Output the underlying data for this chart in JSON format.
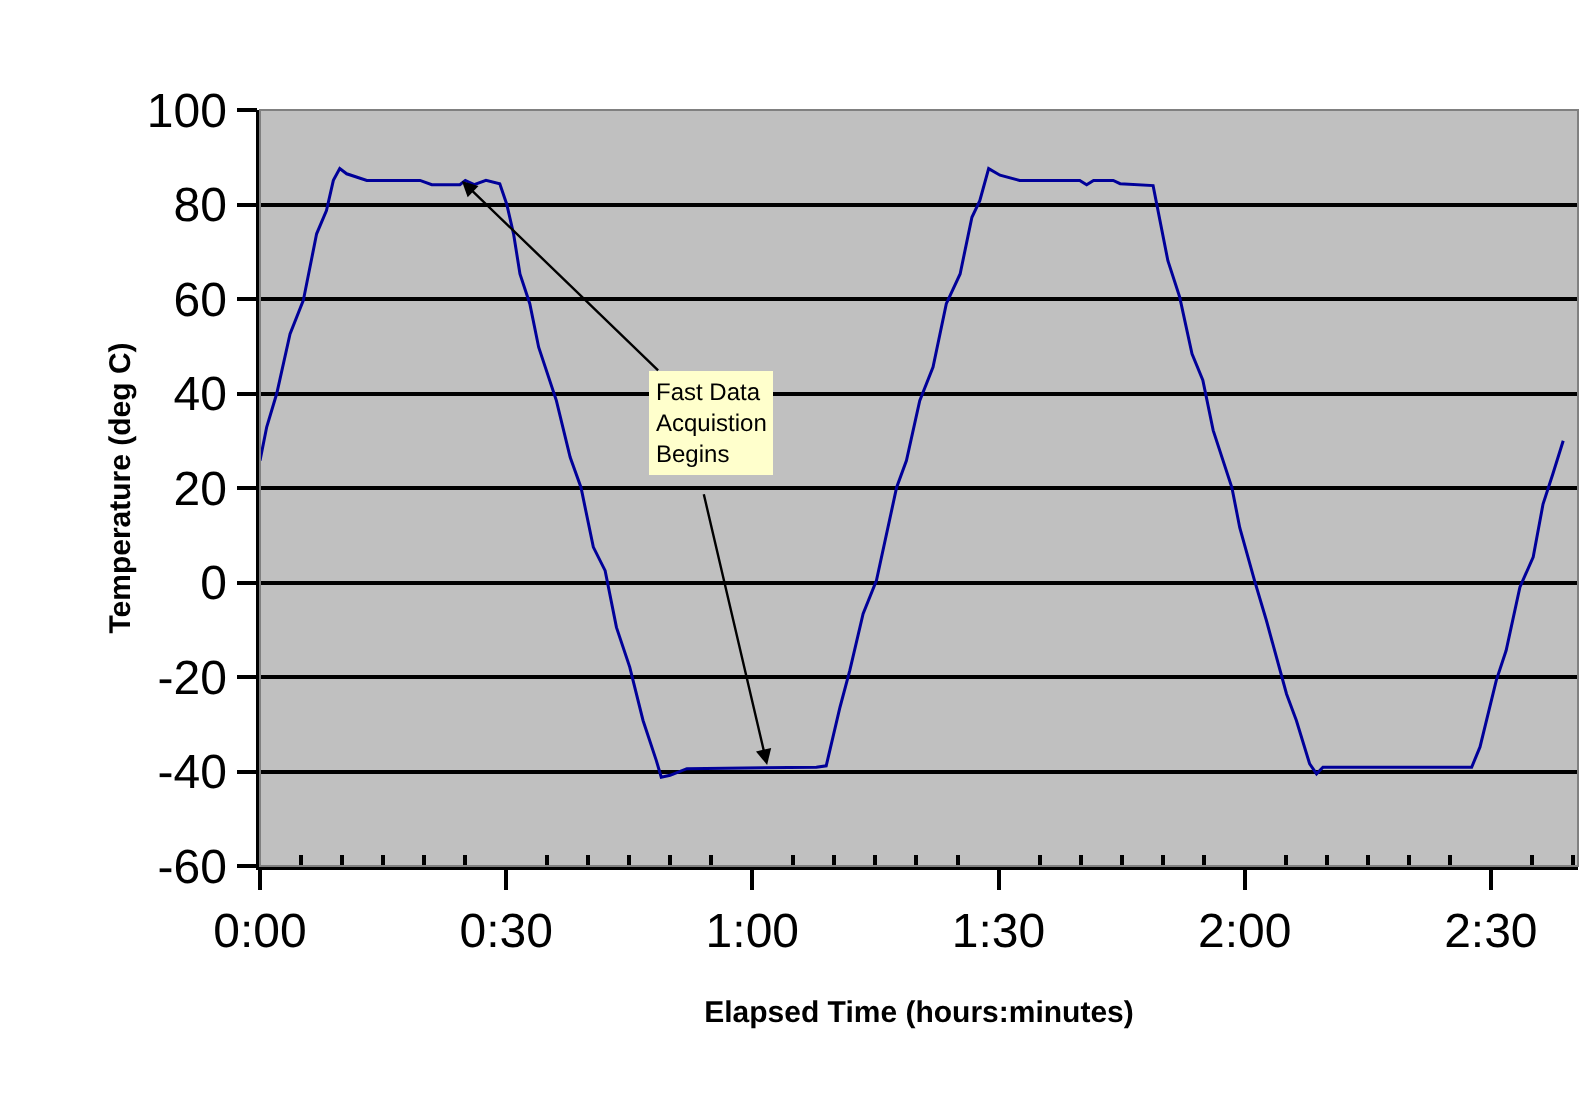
{
  "chart_data": {
    "type": "line",
    "xlabel": "Elapsed Time (hours:minutes)",
    "ylabel": "Temperature (deg C)",
    "x": [
      0,
      0.0136,
      0.034,
      0.061,
      0.088,
      0.115,
      0.135,
      0.149,
      0.162,
      0.176,
      0.217,
      0.325,
      0.349,
      0.406,
      0.417,
      0.435,
      0.459,
      0.487,
      0.501,
      0.515,
      0.528,
      0.548,
      0.566,
      0.602,
      0.63,
      0.652,
      0.677,
      0.701,
      0.724,
      0.751,
      0.778,
      0.805,
      0.815,
      0.833,
      0.867,
      1.13,
      1.15,
      1.178,
      1.198,
      1.225,
      1.252,
      1.293,
      1.313,
      1.34,
      1.367,
      1.394,
      1.422,
      1.446,
      1.462,
      1.48,
      1.503,
      1.543,
      1.665,
      1.679,
      1.693,
      1.733,
      1.747,
      1.814,
      1.844,
      1.868,
      1.893,
      1.915,
      1.936,
      1.974,
      1.99,
      2.02,
      2.044,
      2.085,
      2.105,
      2.132,
      2.146,
      2.159,
      2.461,
      2.478,
      2.511,
      2.531,
      2.559,
      2.586,
      2.606,
      2.626,
      2.647
    ],
    "series": [
      {
        "color": "#000099",
        "values": [
          25.8,
          32.9,
          40,
          52.6,
          59.7,
          73.8,
          78.7,
          85.1,
          87.6,
          86.5,
          85.1,
          85.1,
          84.2,
          84.2,
          85.1,
          84.2,
          85.1,
          84.4,
          80.1,
          73.8,
          65.3,
          59,
          49.8,
          38.5,
          26.5,
          20.1,
          7.5,
          2.5,
          -9.5,
          -17.9,
          -29.2,
          -37.7,
          -41.2,
          -40.8,
          -39.4,
          -39.1,
          -38.8,
          -26.4,
          -18.6,
          -6.6,
          0.4,
          20.1,
          25.8,
          38.5,
          45.6,
          59,
          65.3,
          77.3,
          80.8,
          87.6,
          86.2,
          85.1,
          85.1,
          84.2,
          85.1,
          85.1,
          84.4,
          84,
          68.1,
          60.4,
          48.4,
          42.8,
          32.2,
          20.1,
          11.6,
          0.4,
          -8,
          -23.6,
          -29.2,
          -38.4,
          -40.5,
          -39.1,
          -39.1,
          -34.8,
          -20.7,
          -14.4,
          -1,
          5.4,
          16.6,
          23,
          30
        ]
      }
    ],
    "xlim": [
      0,
      2.677
    ],
    "xticks": [
      {
        "value": 0,
        "label": "0:00"
      },
      {
        "value": 0.0833,
        "label": null
      },
      {
        "value": 0.1667,
        "label": null
      },
      {
        "value": 0.25,
        "label": null
      },
      {
        "value": 0.3333,
        "label": null
      },
      {
        "value": 0.4167,
        "label": null
      },
      {
        "value": 0.5,
        "label": "0:30"
      },
      {
        "value": 0.5833,
        "label": null
      },
      {
        "value": 0.6667,
        "label": null
      },
      {
        "value": 0.75,
        "label": null
      },
      {
        "value": 0.8333,
        "label": null
      },
      {
        "value": 0.9167,
        "label": null
      },
      {
        "value": 1,
        "label": "1:00"
      },
      {
        "value": 1.0833,
        "label": null
      },
      {
        "value": 1.1667,
        "label": null
      },
      {
        "value": 1.25,
        "label": null
      },
      {
        "value": 1.3333,
        "label": null
      },
      {
        "value": 1.4167,
        "label": null
      },
      {
        "value": 1.5,
        "label": "1:30"
      },
      {
        "value": 1.5833,
        "label": null
      },
      {
        "value": 1.6667,
        "label": null
      },
      {
        "value": 1.75,
        "label": null
      },
      {
        "value": 1.8333,
        "label": null
      },
      {
        "value": 1.9167,
        "label": null
      },
      {
        "value": 2,
        "label": "2:00"
      },
      {
        "value": 2.0833,
        "label": null
      },
      {
        "value": 2.1667,
        "label": null
      },
      {
        "value": 2.25,
        "label": null
      },
      {
        "value": 2.3333,
        "label": null
      },
      {
        "value": 2.4167,
        "label": null
      },
      {
        "value": 2.5,
        "label": "2:30"
      },
      {
        "value": 2.5833,
        "label": null
      },
      {
        "value": 2.6667,
        "label": null
      }
    ],
    "ylim": [
      -60,
      100
    ],
    "yticks": [
      -60,
      -40,
      -20,
      0,
      20,
      40,
      60,
      80,
      100
    ],
    "grid": "y",
    "marker": "none",
    "line_style": "solid",
    "annotations": [
      {
        "text": "Fast Data Acquistion Begins",
        "x": 0.41,
        "y": 85
      }
    ]
  }
}
